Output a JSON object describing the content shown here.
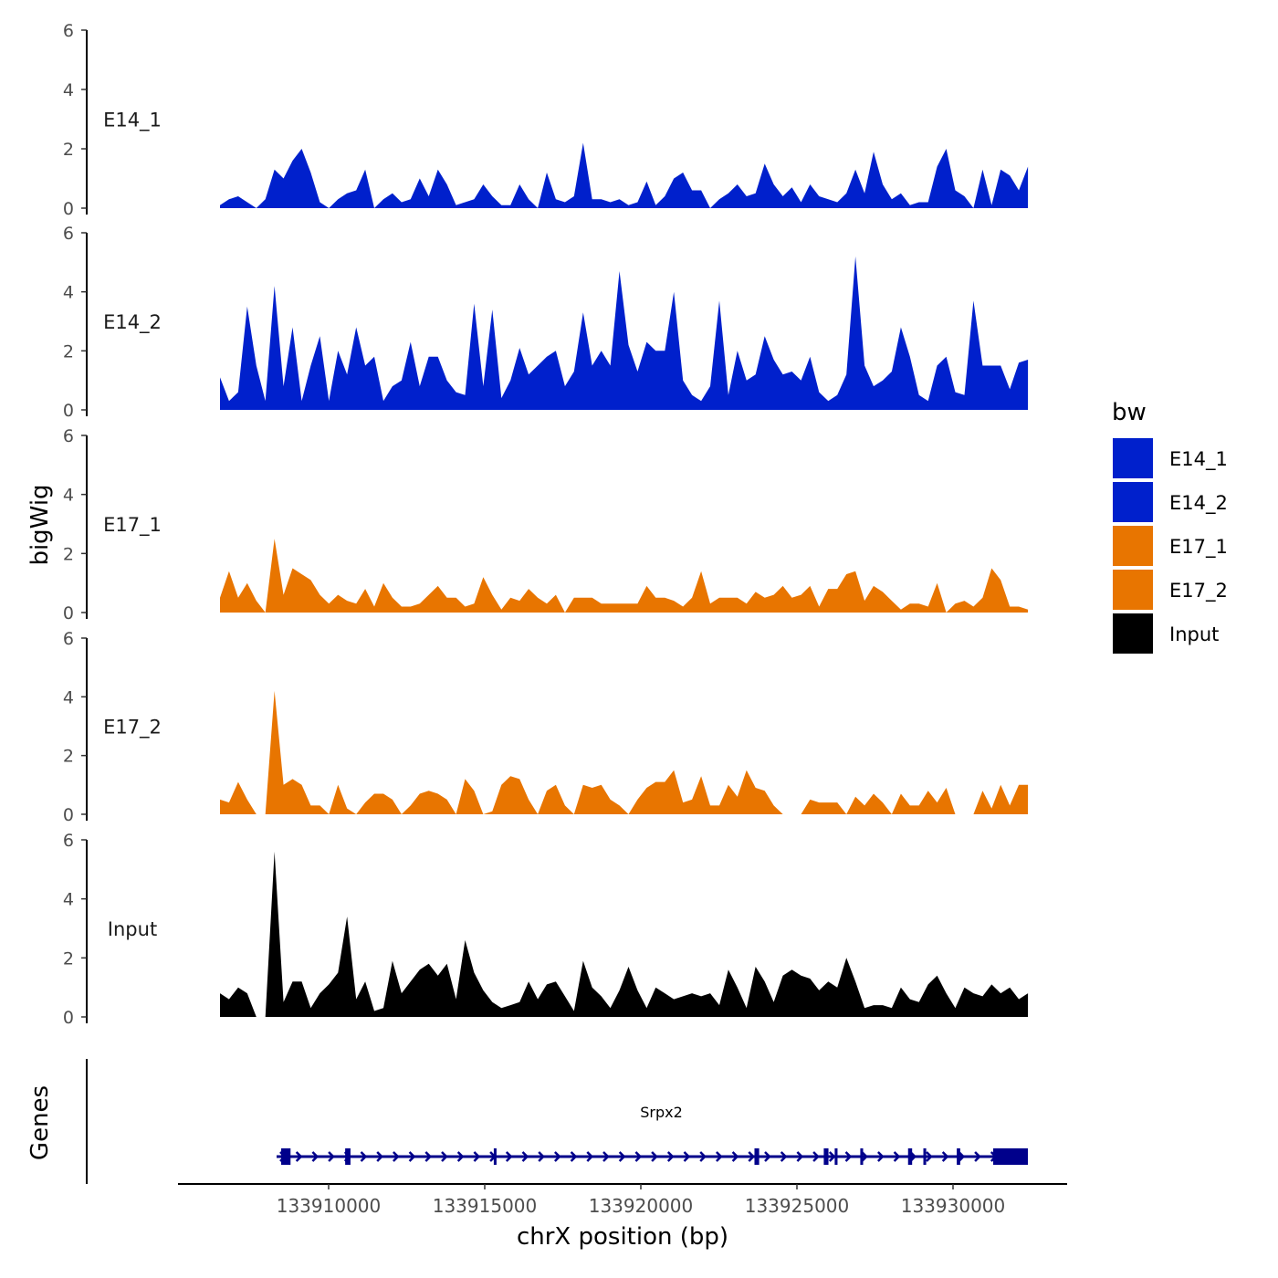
{
  "chart_data": {
    "type": "area",
    "title": "",
    "xlabel": "chrX position (bp)",
    "ylabel": "bigWig",
    "genes_label": "Genes",
    "x_range": [
      133906520,
      133932400
    ],
    "ylim": [
      0,
      6
    ],
    "y_ticks": [
      "0",
      "2",
      "4",
      "6"
    ],
    "y_tick_values": [
      0,
      2,
      4,
      6
    ],
    "x_ticks": [
      "133910000",
      "133915000",
      "133920000",
      "133925000",
      "133930000"
    ],
    "x_tick_values": [
      133910000,
      133915000,
      133920000,
      133925000,
      133930000
    ],
    "grid": false,
    "legend": {
      "title": "bw",
      "placement": "right",
      "entries": [
        {
          "label": "E14_1",
          "color": "#0020CC"
        },
        {
          "label": "E14_2",
          "color": "#0020CC"
        },
        {
          "label": "E17_1",
          "color": "#E87500"
        },
        {
          "label": "E17_2",
          "color": "#E87500"
        },
        {
          "label": "Input",
          "color": "#000000"
        }
      ]
    },
    "series": [
      {
        "name": "E14_1",
        "color": "#0020CC",
        "values": [
          0.1,
          0.3,
          0.4,
          0.2,
          0,
          0.3,
          1.3,
          1.0,
          1.6,
          2.0,
          1.2,
          0.2,
          0,
          0.3,
          0.5,
          0.6,
          1.3,
          0,
          0.3,
          0.5,
          0.2,
          0.3,
          1.0,
          0.4,
          1.3,
          0.8,
          0.1,
          0.2,
          0.3,
          0.8,
          0.4,
          0.1,
          0.1,
          0.8,
          0.3,
          0,
          1.2,
          0.3,
          0.2,
          0.4,
          2.2,
          0.3,
          0.3,
          0.2,
          0.3,
          0.1,
          0.2,
          0.9,
          0.1,
          0.4,
          1.0,
          1.2,
          0.6,
          0.6,
          0,
          0.3,
          0.5,
          0.8,
          0.4,
          0.5,
          1.5,
          0.8,
          0.4,
          0.7,
          0.2,
          0.8,
          0.4,
          0.3,
          0.2,
          0.5,
          1.3,
          0.5,
          1.9,
          0.8,
          0.3,
          0.5,
          0.1,
          0.2,
          0.2,
          1.4,
          2.0,
          0.6,
          0.4,
          0,
          1.3,
          0.1,
          1.3,
          1.1,
          0.6,
          1.4
        ]
      },
      {
        "name": "E14_2",
        "color": "#0020CC",
        "values": [
          1.1,
          0.3,
          0.6,
          3.5,
          1.5,
          0.3,
          4.2,
          0.8,
          2.8,
          0.3,
          1.5,
          2.5,
          0.3,
          2.0,
          1.2,
          2.8,
          1.5,
          1.8,
          0.3,
          0.8,
          1.0,
          2.3,
          0.8,
          1.8,
          1.8,
          1.0,
          0.6,
          0.5,
          3.6,
          0.8,
          3.4,
          0.4,
          1.0,
          2.1,
          1.2,
          1.5,
          1.8,
          2.0,
          0.8,
          1.3,
          3.3,
          1.5,
          2.0,
          1.5,
          4.7,
          2.2,
          1.3,
          2.3,
          2.0,
          2.0,
          4.0,
          1.0,
          0.5,
          0.3,
          0.8,
          3.7,
          0.5,
          2.0,
          1.0,
          1.2,
          2.5,
          1.7,
          1.2,
          1.3,
          1.0,
          1.8,
          0.6,
          0.3,
          0.5,
          1.2,
          5.2,
          1.5,
          0.8,
          1.0,
          1.3,
          2.8,
          1.8,
          0.5,
          0.3,
          1.5,
          1.8,
          0.6,
          0.5,
          3.7,
          1.5,
          1.5,
          1.5,
          0.7,
          1.6,
          1.7
        ]
      },
      {
        "name": "E17_1",
        "color": "#E87500",
        "values": [
          0.5,
          1.4,
          0.5,
          1.0,
          0.4,
          0,
          2.5,
          0.6,
          1.5,
          1.3,
          1.1,
          0.6,
          0.3,
          0.6,
          0.4,
          0.3,
          0.8,
          0.2,
          1.0,
          0.5,
          0.2,
          0.2,
          0.3,
          0.6,
          0.9,
          0.5,
          0.5,
          0.2,
          0.3,
          1.2,
          0.6,
          0.1,
          0.5,
          0.4,
          0.8,
          0.5,
          0.3,
          0.6,
          0,
          0.5,
          0.5,
          0.5,
          0.3,
          0.3,
          0.3,
          0.3,
          0.3,
          0.9,
          0.5,
          0.5,
          0.4,
          0.2,
          0.5,
          1.4,
          0.3,
          0.5,
          0.5,
          0.5,
          0.3,
          0.7,
          0.5,
          0.6,
          0.9,
          0.5,
          0.6,
          0.9,
          0.2,
          0.8,
          0.8,
          1.3,
          1.4,
          0.4,
          0.9,
          0.7,
          0.4,
          0.1,
          0.3,
          0.3,
          0.2,
          1.0,
          0,
          0.3,
          0.4,
          0.2,
          0.5,
          1.5,
          1.1,
          0.2,
          0.2,
          0.1
        ]
      },
      {
        "name": "E17_2",
        "color": "#E87500",
        "values": [
          0.5,
          0.4,
          1.1,
          0.5,
          0,
          0,
          4.2,
          1.0,
          1.2,
          1.0,
          0.3,
          0.3,
          0,
          1.0,
          0.2,
          0,
          0.4,
          0.7,
          0.7,
          0.5,
          0,
          0.3,
          0.7,
          0.8,
          0.7,
          0.5,
          0,
          1.2,
          0.8,
          0,
          0.1,
          1.0,
          1.3,
          1.2,
          0.5,
          0,
          0.8,
          1.0,
          0.3,
          0,
          1.0,
          0.9,
          1.0,
          0.5,
          0.3,
          0,
          0.5,
          0.9,
          1.1,
          1.1,
          1.5,
          0.4,
          0.5,
          1.3,
          0.3,
          0.3,
          1.0,
          0.6,
          1.5,
          0.9,
          0.8,
          0.3,
          0,
          0,
          0,
          0.5,
          0.4,
          0.4,
          0.4,
          0,
          0.6,
          0.3,
          0.7,
          0.4,
          0,
          0.7,
          0.3,
          0.3,
          0.8,
          0.4,
          0.9,
          0,
          0,
          0,
          0.8,
          0.2,
          1.0,
          0.3,
          1.0,
          1.0
        ]
      },
      {
        "name": "Input",
        "color": "#000000",
        "values": [
          0.8,
          0.6,
          1.0,
          0.8,
          0,
          0,
          5.6,
          0.5,
          1.2,
          1.2,
          0.3,
          0.8,
          1.1,
          1.5,
          3.4,
          0.6,
          1.2,
          0.2,
          0.3,
          1.9,
          0.8,
          1.2,
          1.6,
          1.8,
          1.4,
          1.8,
          0.6,
          2.6,
          1.5,
          0.9,
          0.5,
          0.3,
          0.4,
          0.5,
          1.2,
          0.6,
          1.1,
          1.2,
          0.7,
          0.2,
          1.9,
          1.0,
          0.7,
          0.3,
          0.9,
          1.7,
          0.9,
          0.3,
          1.0,
          0.8,
          0.6,
          0.7,
          0.8,
          0.7,
          0.8,
          0.4,
          1.6,
          1.0,
          0.3,
          1.7,
          1.2,
          0.5,
          1.4,
          1.6,
          1.4,
          1.3,
          0.9,
          1.2,
          1.0,
          2.0,
          1.2,
          0.3,
          0.4,
          0.4,
          0.3,
          1.0,
          0.6,
          0.5,
          1.1,
          1.4,
          0.8,
          0.3,
          1.0,
          0.8,
          0.7,
          1.1,
          0.8,
          1.0,
          0.6,
          0.8
        ]
      }
    ],
    "gene": {
      "name": "Srpx2",
      "strand": "+",
      "color": "#00008B",
      "start": 133908333,
      "end": 133932398,
      "exons": [
        [
          133908480,
          133908780
        ],
        [
          133910530,
          133910700
        ],
        [
          133915290,
          133915350
        ],
        [
          133923640,
          133923790
        ],
        [
          133925860,
          133926010
        ],
        [
          133926210,
          133926300
        ],
        [
          133927030,
          133927120
        ],
        [
          133928560,
          133928690
        ],
        [
          133929050,
          133929140
        ],
        [
          133930120,
          133930230
        ],
        [
          133931287,
          133932398
        ]
      ]
    }
  }
}
